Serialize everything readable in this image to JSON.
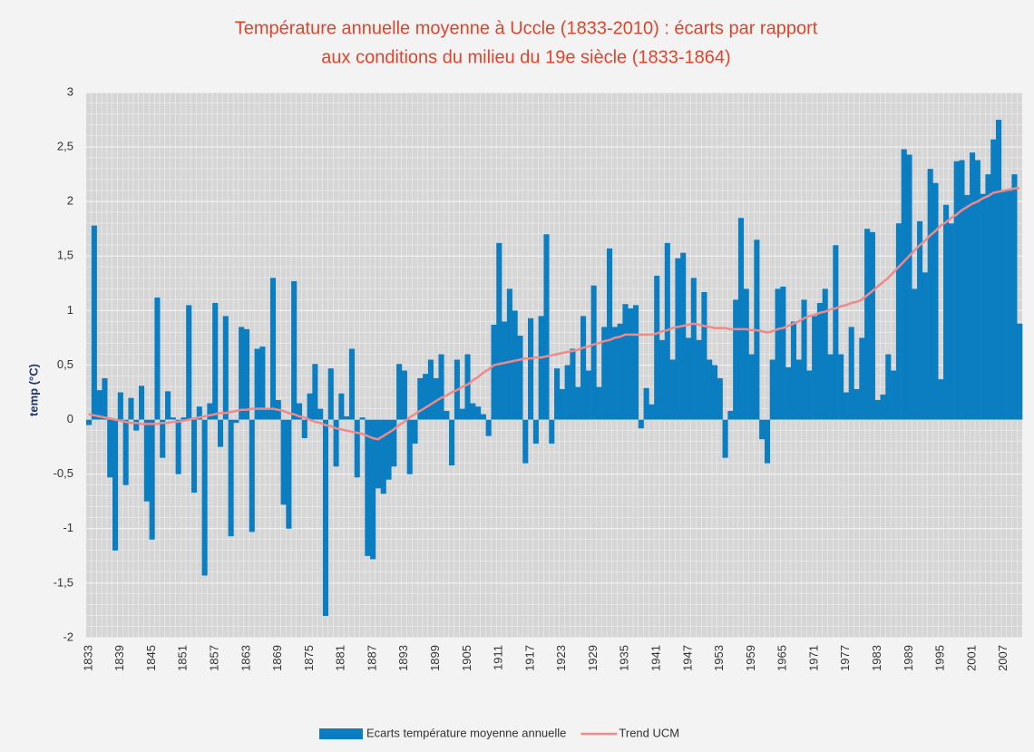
{
  "chart_data": {
    "type": "bar",
    "title": [
      "Température annuelle  moyenne à Uccle (1833-2010) : écarts par rapport",
      "aux conditions du milieu du 19e siècle (1833-1864)"
    ],
    "y_label": "temp (°C)",
    "categories": [
      "1833",
      null,
      null,
      null,
      null,
      null,
      "1839",
      null,
      null,
      null,
      null,
      null,
      "1845",
      null,
      null,
      null,
      null,
      null,
      "1851",
      null,
      null,
      null,
      null,
      null,
      "1857",
      null,
      null,
      null,
      null,
      null,
      "1863",
      null,
      null,
      null,
      null,
      null,
      "1869",
      null,
      null,
      null,
      null,
      null,
      "1875",
      null,
      null,
      null,
      null,
      null,
      "1881",
      null,
      null,
      null,
      null,
      null,
      "1887",
      null,
      null,
      null,
      null,
      null,
      "1893",
      null,
      null,
      null,
      null,
      null,
      "1899",
      null,
      null,
      null,
      null,
      null,
      "1905",
      null,
      null,
      null,
      null,
      null,
      "1911",
      null,
      null,
      null,
      null,
      null,
      "1917",
      null,
      null,
      null,
      null,
      null,
      "1923",
      null,
      null,
      null,
      null,
      null,
      "1929",
      null,
      null,
      null,
      null,
      null,
      "1935",
      null,
      null,
      null,
      null,
      null,
      "1941",
      null,
      null,
      null,
      null,
      null,
      "1947",
      null,
      null,
      null,
      null,
      null,
      "1953",
      null,
      null,
      null,
      null,
      null,
      "1959",
      null,
      null,
      null,
      null,
      null,
      "1965",
      null,
      null,
      null,
      null,
      null,
      "1971",
      null,
      null,
      null,
      null,
      null,
      "1977",
      null,
      null,
      null,
      null,
      null,
      "1983",
      null,
      null,
      null,
      null,
      null,
      "1989",
      null,
      null,
      null,
      null,
      null,
      "1995",
      null,
      null,
      null,
      null,
      null,
      "2001",
      null,
      null,
      null,
      null,
      null,
      "2007",
      null,
      null,
      null
    ],
    "series": [
      {
        "name": "Ecarts température moyenne annuelle",
        "type": "bar",
        "color": "#0b7dc1",
        "values": [
          -0.05,
          1.78,
          0.27,
          0.38,
          -0.53,
          -1.2,
          0.25,
          -0.6,
          0.2,
          -0.1,
          0.31,
          -0.75,
          -1.1,
          1.12,
          -0.35,
          0.26,
          0.02,
          -0.5,
          0.02,
          1.05,
          -0.67,
          0.12,
          -1.43,
          0.15,
          1.07,
          -0.25,
          0.95,
          -1.07,
          -0.03,
          0.85,
          0.83,
          -1.03,
          0.65,
          0.67,
          0.1,
          1.3,
          0.18,
          -0.78,
          -1.0,
          1.27,
          0.15,
          -0.17,
          0.24,
          0.51,
          0.1,
          -1.8,
          0.47,
          -0.43,
          0.24,
          0.03,
          0.65,
          -0.53,
          0.02,
          -1.25,
          -1.28,
          -0.63,
          -0.68,
          -0.55,
          -0.43,
          0.51,
          0.45,
          -0.5,
          -0.22,
          0.38,
          0.42,
          0.55,
          0.38,
          0.6,
          0.08,
          -0.42,
          0.55,
          0.1,
          0.6,
          0.15,
          0.12,
          0.05,
          -0.15,
          0.87,
          1.62,
          0.9,
          1.2,
          1.0,
          0.77,
          -0.4,
          0.93,
          -0.22,
          0.95,
          1.7,
          -0.22,
          0.47,
          0.28,
          0.5,
          0.65,
          0.3,
          0.95,
          0.45,
          1.23,
          0.3,
          0.85,
          1.57,
          0.85,
          0.88,
          1.06,
          1.02,
          1.05,
          -0.08,
          0.29,
          0.14,
          1.32,
          0.73,
          1.62,
          0.55,
          1.48,
          1.53,
          0.75,
          1.3,
          0.73,
          1.17,
          0.55,
          0.5,
          0.38,
          -0.35,
          0.08,
          1.1,
          1.85,
          1.2,
          0.6,
          1.65,
          -0.18,
          -0.4,
          0.55,
          1.2,
          1.22,
          0.48,
          0.9,
          0.55,
          1.1,
          0.45,
          0.95,
          1.07,
          1.2,
          0.6,
          1.6,
          0.6,
          0.25,
          0.85,
          0.28,
          0.75,
          1.75,
          1.72,
          0.18,
          0.23,
          0.6,
          0.45,
          1.8,
          2.48,
          2.43,
          1.2,
          1.82,
          1.35,
          2.3,
          2.17,
          0.37,
          1.97,
          1.8,
          2.37,
          2.38,
          2.06,
          2.45,
          2.38,
          2.07,
          2.25,
          2.57,
          2.75,
          2.1,
          2.1,
          2.25,
          0.88
        ]
      },
      {
        "name": "Trend UCM",
        "type": "line",
        "color": "#f08a8a",
        "values": [
          0.05,
          0.04,
          0.03,
          0.02,
          0.01,
          0.0,
          -0.01,
          -0.02,
          -0.03,
          -0.03,
          -0.04,
          -0.04,
          -0.04,
          -0.04,
          -0.03,
          -0.03,
          -0.02,
          -0.02,
          -0.01,
          0.0,
          0.01,
          0.02,
          0.03,
          0.04,
          0.05,
          0.06,
          0.06,
          0.07,
          0.08,
          0.09,
          0.09,
          0.1,
          0.1,
          0.1,
          0.1,
          0.1,
          0.09,
          0.08,
          0.06,
          0.05,
          0.03,
          0.02,
          0.0,
          -0.02,
          -0.03,
          -0.05,
          -0.06,
          -0.08,
          -0.09,
          -0.1,
          -0.11,
          -0.12,
          -0.13,
          -0.15,
          -0.17,
          -0.18,
          -0.15,
          -0.12,
          -0.09,
          -0.05,
          -0.02,
          0.02,
          0.05,
          0.08,
          0.11,
          0.14,
          0.17,
          0.2,
          0.22,
          0.25,
          0.27,
          0.3,
          0.32,
          0.36,
          0.39,
          0.43,
          0.46,
          0.5,
          0.51,
          0.52,
          0.53,
          0.54,
          0.55,
          0.56,
          0.56,
          0.57,
          0.57,
          0.58,
          0.59,
          0.6,
          0.61,
          0.62,
          0.63,
          0.64,
          0.66,
          0.67,
          0.69,
          0.7,
          0.72,
          0.73,
          0.75,
          0.76,
          0.78,
          0.78,
          0.78,
          0.78,
          0.78,
          0.78,
          0.79,
          0.81,
          0.82,
          0.84,
          0.85,
          0.86,
          0.87,
          0.88,
          0.87,
          0.86,
          0.85,
          0.84,
          0.84,
          0.84,
          0.83,
          0.83,
          0.83,
          0.83,
          0.82,
          0.82,
          0.81,
          0.8,
          0.81,
          0.83,
          0.84,
          0.86,
          0.88,
          0.9,
          0.93,
          0.95,
          0.96,
          0.98,
          0.99,
          1.01,
          1.02,
          1.04,
          1.05,
          1.07,
          1.08,
          1.1,
          1.14,
          1.18,
          1.22,
          1.26,
          1.3,
          1.35,
          1.4,
          1.45,
          1.5,
          1.55,
          1.6,
          1.64,
          1.69,
          1.73,
          1.78,
          1.81,
          1.85,
          1.88,
          1.92,
          1.95,
          1.98,
          2.0,
          2.03,
          2.05,
          2.08,
          2.09,
          2.1,
          2.11,
          2.12,
          2.12
        ]
      }
    ],
    "ylim": [
      -2,
      3
    ],
    "yticks": [
      3,
      {
        "value": 2.5,
        "label": "2,5"
      },
      2,
      {
        "value": 1.5,
        "label": "1,5"
      },
      1,
      {
        "value": 0.5,
        "label": "0,5"
      },
      0,
      {
        "value": -0.5,
        "label": "-0,5"
      },
      -1,
      {
        "value": -1.5,
        "label": "-1,5"
      },
      -2
    ],
    "grid": true,
    "legend": "bottom"
  }
}
